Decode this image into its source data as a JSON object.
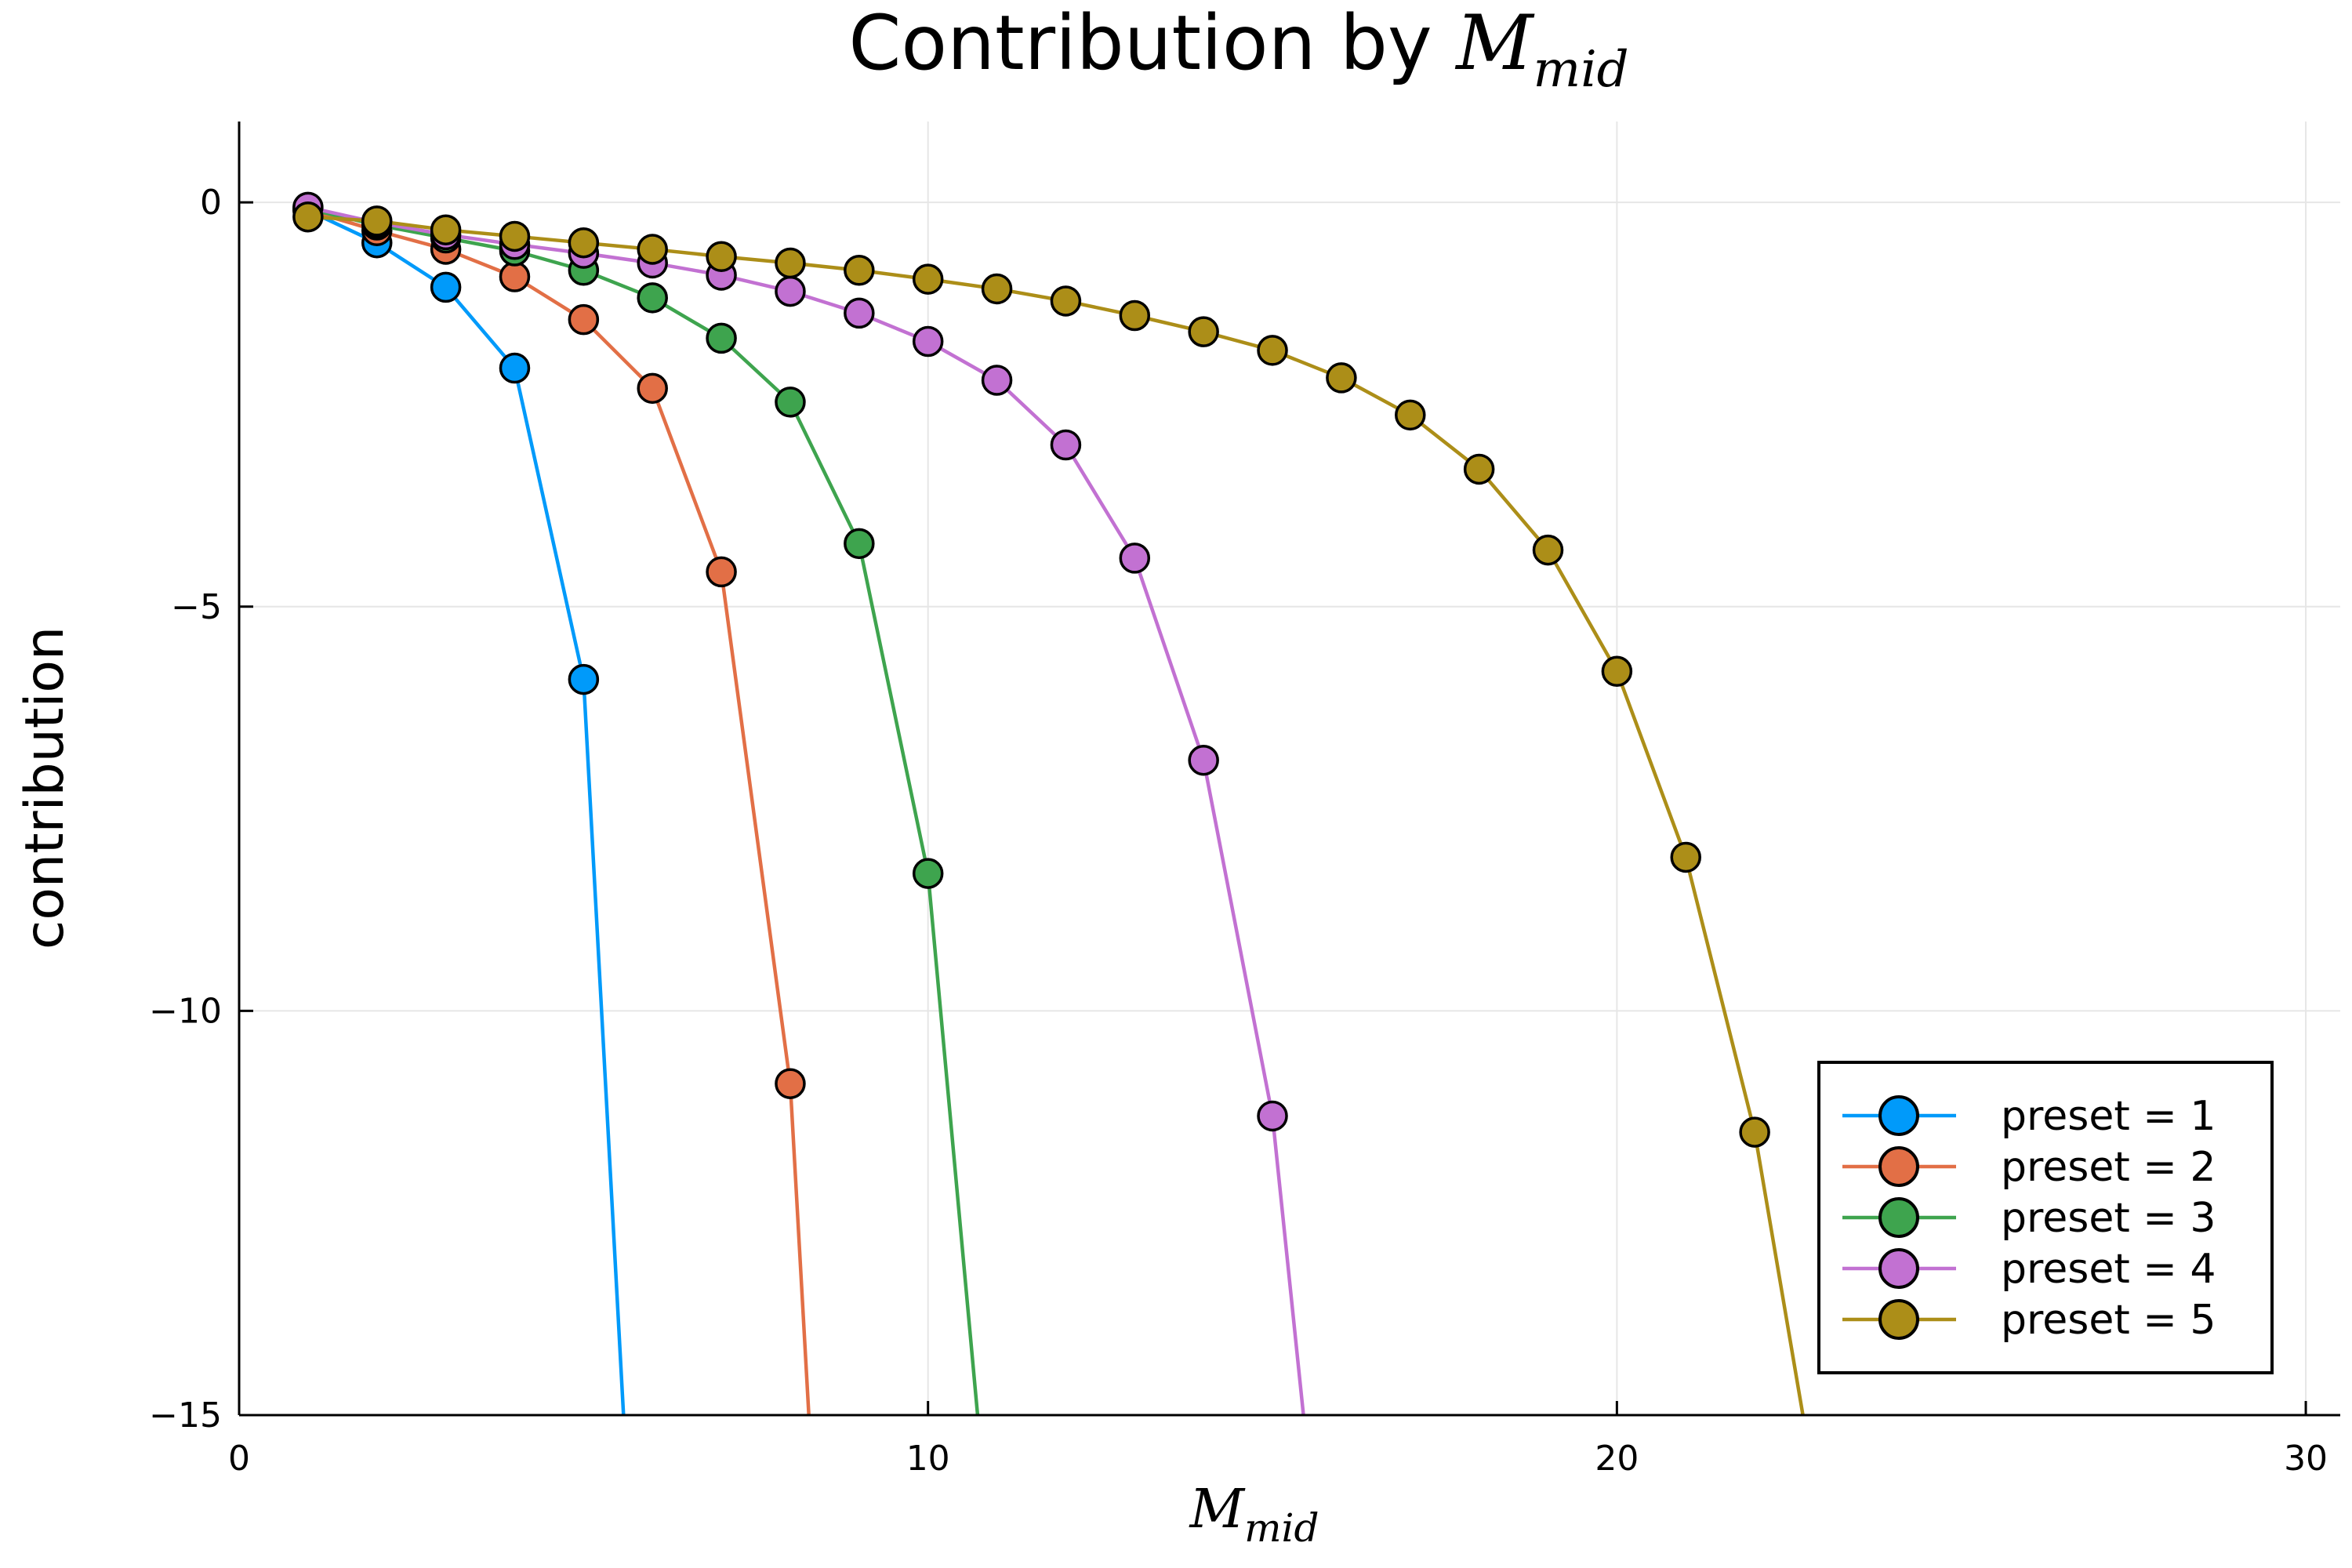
{
  "chart_data": {
    "type": "line",
    "title": "Contribution by ",
    "title_math": {
      "main": "M",
      "sub": "mid"
    },
    "xlabel_math": {
      "main": "M",
      "sub": "mid"
    },
    "ylabel": "contribution",
    "xlim": [
      0,
      30.5
    ],
    "ylim": [
      -15,
      1
    ],
    "xticks": [
      0,
      10,
      20,
      30
    ],
    "yticks": [
      0,
      -5,
      -10,
      -15
    ],
    "xtick_labels": [
      "0",
      "10",
      "20",
      "30"
    ],
    "ytick_labels": [
      "0",
      "−5",
      "−10",
      "−15"
    ],
    "grid": true,
    "legend_position": "bottom-right",
    "series": [
      {
        "name": "preset = 1",
        "color": "#009AFA",
        "x": [
          1,
          2,
          3,
          4,
          5
        ],
        "y": [
          -0.1,
          -0.5,
          -1.05,
          -2.05,
          -5.9
        ],
        "tail_to": [
          5.58,
          -15
        ]
      },
      {
        "name": "preset = 2",
        "color": "#E26F46",
        "x": [
          1,
          2,
          3,
          4,
          5,
          6,
          7,
          8
        ],
        "y": [
          -0.1,
          -0.35,
          -0.58,
          -0.92,
          -1.45,
          -2.3,
          -4.57,
          -10.9
        ],
        "tail_to": [
          8.27,
          -15
        ]
      },
      {
        "name": "preset = 3",
        "color": "#3EA44E",
        "x": [
          1,
          2,
          3,
          4,
          5,
          6,
          7,
          8,
          9,
          10
        ],
        "y": [
          -0.08,
          -0.28,
          -0.44,
          -0.6,
          -0.84,
          -1.18,
          -1.68,
          -2.47,
          -4.22,
          -8.3
        ],
        "tail_to": [
          10.72,
          -15
        ]
      },
      {
        "name": "preset = 4",
        "color": "#C271D2",
        "x": [
          1,
          2,
          3,
          4,
          5,
          6,
          7,
          8,
          9,
          10,
          11,
          12,
          13,
          14,
          15
        ],
        "y": [
          -0.06,
          -0.25,
          -0.4,
          -0.52,
          -0.63,
          -0.75,
          -0.9,
          -1.1,
          -1.37,
          -1.72,
          -2.2,
          -3.0,
          -4.4,
          -6.9,
          -11.3
        ],
        "tail_to": [
          15.45,
          -15
        ]
      },
      {
        "name": "preset = 5",
        "color": "#AC8E18",
        "x": [
          1,
          2,
          3,
          4,
          5,
          6,
          7,
          8,
          9,
          10,
          11,
          12,
          13,
          14,
          15,
          16,
          17,
          18,
          19,
          20,
          21,
          22
        ],
        "y": [
          -0.18,
          -0.23,
          -0.34,
          -0.42,
          -0.5,
          -0.58,
          -0.67,
          -0.75,
          -0.84,
          -0.95,
          -1.07,
          -1.22,
          -1.4,
          -1.6,
          -1.83,
          -2.17,
          -2.63,
          -3.3,
          -4.3,
          -5.8,
          -8.1,
          -11.5
        ],
        "tail_to": [
          22.7,
          -15
        ]
      }
    ]
  }
}
